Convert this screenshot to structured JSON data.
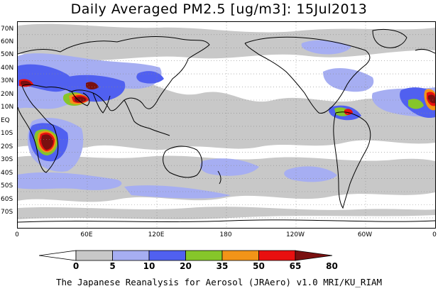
{
  "title": "Daily Averaged PM2.5 [ug/m3]: 15Jul2013",
  "footer": "The Japanese Reanalysis for Aerosol (JRAero) v1.0 MRI/KU_RIAM",
  "lat_labels": [
    "70N",
    "60N",
    "50N",
    "40N",
    "30N",
    "20N",
    "10N",
    "EQ",
    "10S",
    "20S",
    "30S",
    "40S",
    "50S",
    "60S",
    "70S"
  ],
  "lon_labels": [
    "0",
    "60E",
    "120E",
    "180",
    "120W",
    "60W",
    "0"
  ],
  "colorbar": {
    "levels": [
      "0",
      "5",
      "10",
      "20",
      "35",
      "50",
      "65",
      "80"
    ],
    "colors": [
      "#ffffff",
      "#c8c8c8",
      "#a6aef2",
      "#5060f0",
      "#86c62a",
      "#f29418",
      "#e81010",
      "#7a1010"
    ]
  }
}
